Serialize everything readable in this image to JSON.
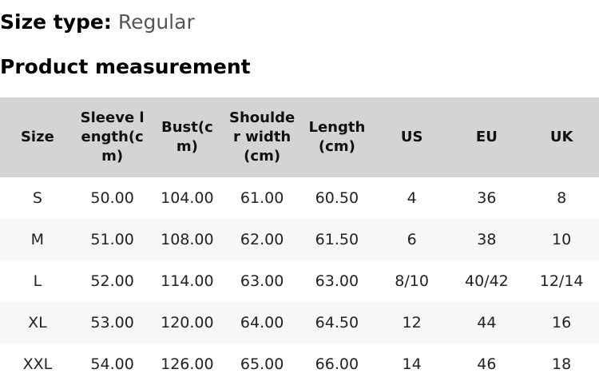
{
  "size_type": {
    "label": "Size type:",
    "value": "Regular"
  },
  "title": "Product measurement",
  "headers": [
    "Size",
    "Sleeve length(cm)",
    "Bust(cm)",
    "Shoulder width(cm)",
    "Length(cm)",
    "US",
    "EU",
    "UK"
  ],
  "rows": [
    [
      "S",
      "50.00",
      "104.00",
      "61.00",
      "60.50",
      "4",
      "36",
      "8"
    ],
    [
      "M",
      "51.00",
      "108.00",
      "62.00",
      "61.50",
      "6",
      "38",
      "10"
    ],
    [
      "L",
      "52.00",
      "114.00",
      "63.00",
      "63.00",
      "8/10",
      "40/42",
      "12/14"
    ],
    [
      "XL",
      "53.00",
      "120.00",
      "64.00",
      "64.50",
      "12",
      "44",
      "16"
    ],
    [
      "XXL",
      "54.00",
      "126.00",
      "65.00",
      "66.00",
      "14",
      "46",
      "18"
    ]
  ]
}
